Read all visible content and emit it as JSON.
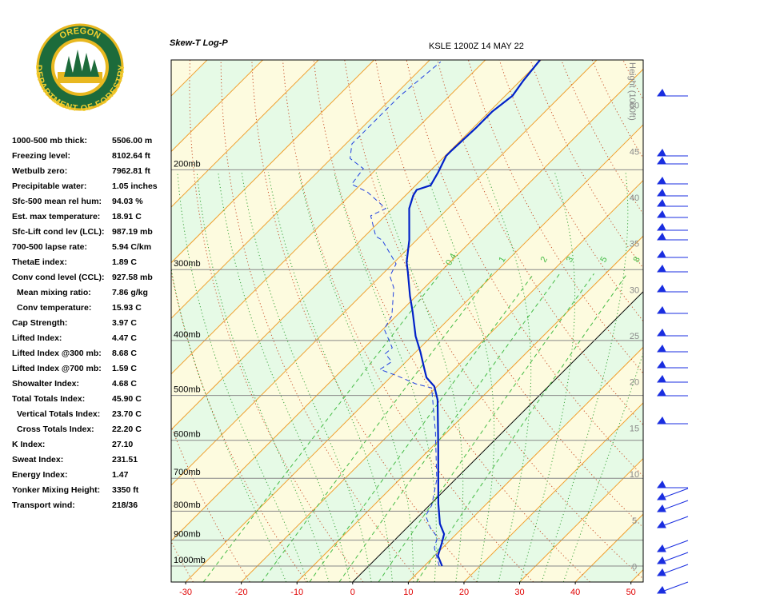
{
  "logo": {
    "top": "OREGON",
    "bottom": "DEPARTMENT OF FORESTRY"
  },
  "indices": [
    {
      "label": "1000-500 mb thick:",
      "value": "5506.00 m"
    },
    {
      "label": "Freezing level:",
      "value": "8102.64 ft"
    },
    {
      "label": "Wetbulb zero:",
      "value": "7962.81 ft"
    },
    {
      "label": "Precipitable water:",
      "value": "1.05 inches"
    },
    {
      "label": "Sfc-500 mean rel hum:",
      "value": "94.03 %"
    },
    {
      "label": "Est. max temperature:",
      "value": "18.91 C"
    },
    {
      "label": "Sfc-Lift cond lev (LCL):",
      "value": "987.19 mb"
    },
    {
      "label": "700-500 lapse rate:",
      "value": "5.94 C/km"
    },
    {
      "label": "ThetaE index:",
      "value": "1.89 C"
    },
    {
      "label": "Conv cond level (CCL):",
      "value": "927.58 mb",
      "sub": [
        {
          "label": "Mean mixing ratio:",
          "value": "7.86 g/kg"
        },
        {
          "label": "Conv temperature:",
          "value": "15.93 C"
        }
      ]
    },
    {
      "label": "Cap Strength:",
      "value": "3.97 C"
    },
    {
      "label": "Lifted Index:",
      "value": "4.47 C"
    },
    {
      "label": "Lifted Index @300 mb:",
      "value": "8.68 C"
    },
    {
      "label": "Lifted Index @700 mb:",
      "value": "1.59 C"
    },
    {
      "label": "Showalter Index:",
      "value": "4.68 C"
    },
    {
      "label": "Total Totals Index:",
      "value": "45.90 C",
      "sub": [
        {
          "label": "Vertical Totals Index:",
          "value": "23.70 C"
        },
        {
          "label": "Cross Totals Index:",
          "value": "22.20 C"
        }
      ]
    },
    {
      "label": "K Index:",
      "value": "27.10"
    },
    {
      "label": "Sweat Index:",
      "value": "231.51"
    },
    {
      "label": "Energy Index:",
      "value": "1.47"
    },
    {
      "label": "Yonker Mixing Height:",
      "value": "3350 ft"
    },
    {
      "label": "Transport wind:",
      "value": "218/36"
    }
  ],
  "chart_data": {
    "type": "skewt",
    "title": "Skew-T Log-P",
    "subtitle": "KSLE 1200Z 14 MAY 22",
    "xlim": [
      -32.6,
      52.2
    ],
    "xticks": [
      -30,
      -20,
      -10,
      0,
      10,
      20,
      30,
      40,
      50
    ],
    "ylim": [
      1067,
      128
    ],
    "log_y": true,
    "yticks": [
      {
        "value": 200,
        "label": "200mb"
      },
      {
        "value": 300,
        "label": "300mb"
      },
      {
        "value": 400,
        "label": "400mb"
      },
      {
        "value": 500,
        "label": "500mb"
      },
      {
        "value": 600,
        "label": "600mb"
      },
      {
        "value": 700,
        "label": "700mb"
      },
      {
        "value": 800,
        "label": "800mb"
      },
      {
        "value": 900,
        "label": "900mb"
      },
      {
        "value": 1000,
        "label": "1000mb"
      }
    ],
    "y2label": "Height (1000ft)",
    "y2lim": [
      -1.6,
      55.0
    ],
    "y2ticks": [
      0,
      5,
      10,
      15,
      20,
      25,
      30,
      35,
      40,
      45,
      50
    ],
    "mixing_ratio": {
      "color": "#44bb44",
      "values": [
        0.4,
        1,
        2,
        3,
        5,
        8
      ]
    },
    "series": [
      {
        "color": "#0020c8",
        "dashed": false,
        "pressure": [
          1000,
          959,
          913,
          878,
          842,
          776,
          618,
          509,
          482,
          465,
          450,
          419,
          393,
          356,
          334,
          303,
          291,
          266,
          234,
          222,
          217,
          213,
          202,
          189,
          185,
          169,
          158,
          148,
          139,
          128
        ],
        "values": [
          13.2,
          10.6,
          9.1,
          7.8,
          5.2,
          1.3,
          -8.8,
          -17.5,
          -20.5,
          -23.5,
          -25.3,
          -29.2,
          -32.9,
          -37.8,
          -41.1,
          -45.8,
          -47.8,
          -51.3,
          -57.0,
          -58.6,
          -59.0,
          -57.3,
          -58.3,
          -59.8,
          -59.8,
          -59.5,
          -59.5,
          -58.7,
          -59.5,
          -60.2
        ]
      },
      {
        "color": "#2040e0",
        "dashed": true,
        "pressure": [
          1000,
          928,
          890,
          856,
          815,
          781,
          704,
          580,
          526,
          485,
          477,
          462,
          450,
          436,
          422,
          412,
          382,
          362,
          323,
          308,
          293,
          266,
          262,
          241,
          234,
          219,
          212,
          199,
          191,
          180,
          163,
          148,
          129
        ],
        "values": [
          12.7,
          8.5,
          7.2,
          4.2,
          1.2,
          0.4,
          -3.3,
          -12.1,
          -16.8,
          -20.7,
          -24.3,
          -29.0,
          -33.3,
          -32.6,
          -35.2,
          -35.0,
          -39.8,
          -40.8,
          -45.5,
          -48.3,
          -49.4,
          -56.2,
          -58.0,
          -62.6,
          -61.2,
          -67.4,
          -71.7,
          -72.4,
          -76.6,
          -78.9,
          -78.9,
          -78.9,
          -77.7
        ]
      }
    ]
  }
}
